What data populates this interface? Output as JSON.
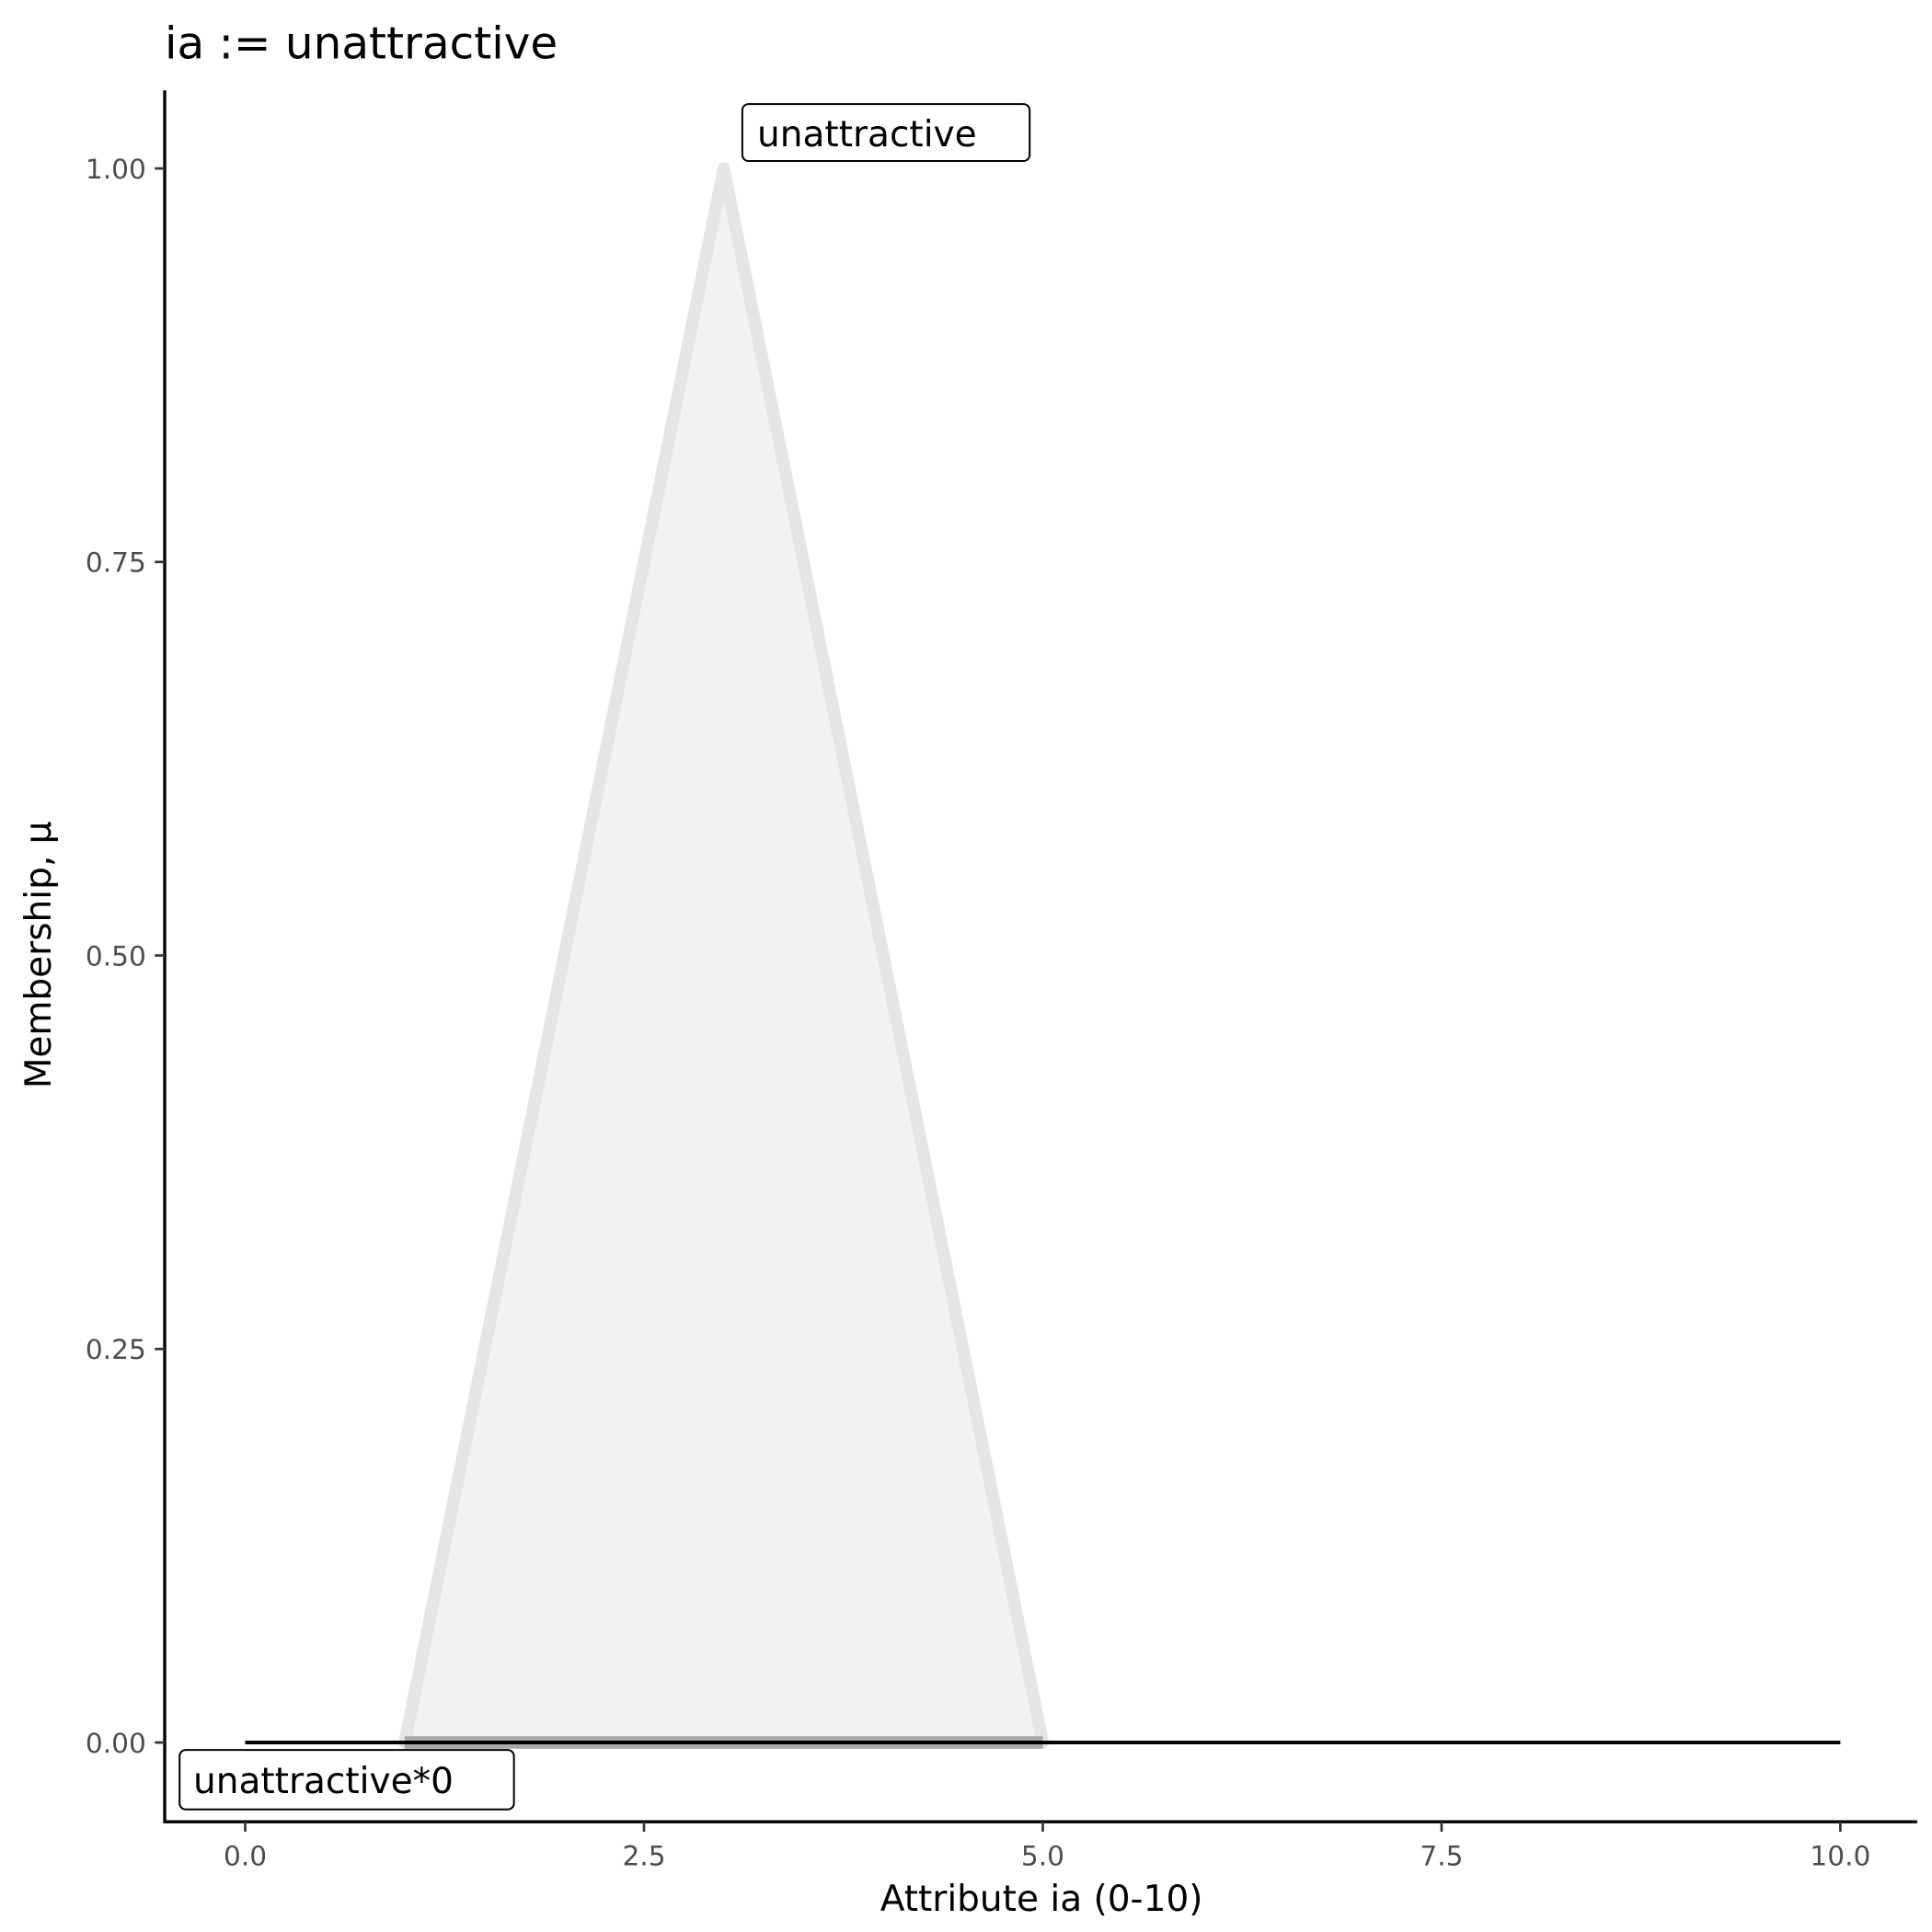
{
  "chart_data": {
    "type": "area",
    "title": "ia := unattractive",
    "xlabel": "Attribute ia (0-10)",
    "ylabel": "Membership, μ",
    "xlim": [
      0,
      10
    ],
    "ylim": [
      0,
      1
    ],
    "x_ticks": [
      "0.0",
      "2.5",
      "5.0",
      "7.5",
      "10.0"
    ],
    "y_ticks": [
      "0.00",
      "0.25",
      "0.50",
      "0.75",
      "1.00"
    ],
    "grid": false,
    "series": [
      {
        "name": "unattractive",
        "x": [
          1,
          3,
          5
        ],
        "y": [
          0,
          1,
          0
        ],
        "fill": "#f2f2f2",
        "stroke": "#e5e5e5"
      }
    ],
    "baseline": {
      "x": [
        0,
        10
      ],
      "y": [
        0,
        0
      ],
      "color": "#000000"
    },
    "highlight_segment": {
      "x": [
        1,
        5
      ],
      "y": 0,
      "color": "#999999"
    },
    "annotations": [
      {
        "text": "unattractive",
        "x": 3,
        "y": 1
      },
      {
        "text": "unattractive*0",
        "x": 0,
        "y": 0
      }
    ]
  }
}
